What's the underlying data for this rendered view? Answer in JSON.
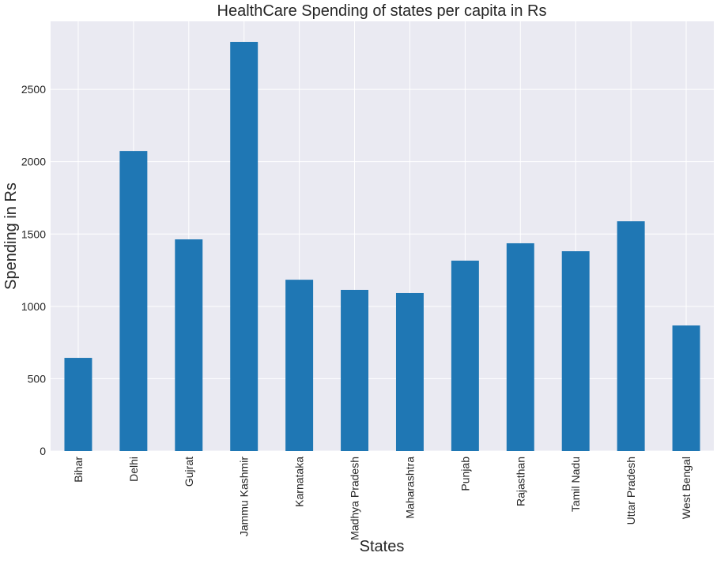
{
  "chart_data": {
    "type": "bar",
    "title": "HealthCare Spending of states per capita in Rs",
    "xlabel": "States",
    "ylabel": "Spending in Rs",
    "categories": [
      "Bihar",
      "Delhi",
      "Gujrat",
      "Jammu Kashmir",
      "Karnataka",
      "Madhya Pradesh",
      "Maharashtra",
      "Punjab",
      "Rajasthan",
      "Tamil Nadu",
      "Uttar Pradesh",
      "West Bengal"
    ],
    "values": [
      644,
      2074,
      1463,
      2828,
      1184,
      1114,
      1092,
      1316,
      1436,
      1381,
      1588,
      868
    ],
    "ylim": [
      0,
      2970
    ],
    "yticks": [
      0,
      500,
      1000,
      1500,
      2000,
      2500
    ],
    "grid": true,
    "bar_color": "#1f77b4",
    "background_color": "#eaeaf2"
  }
}
